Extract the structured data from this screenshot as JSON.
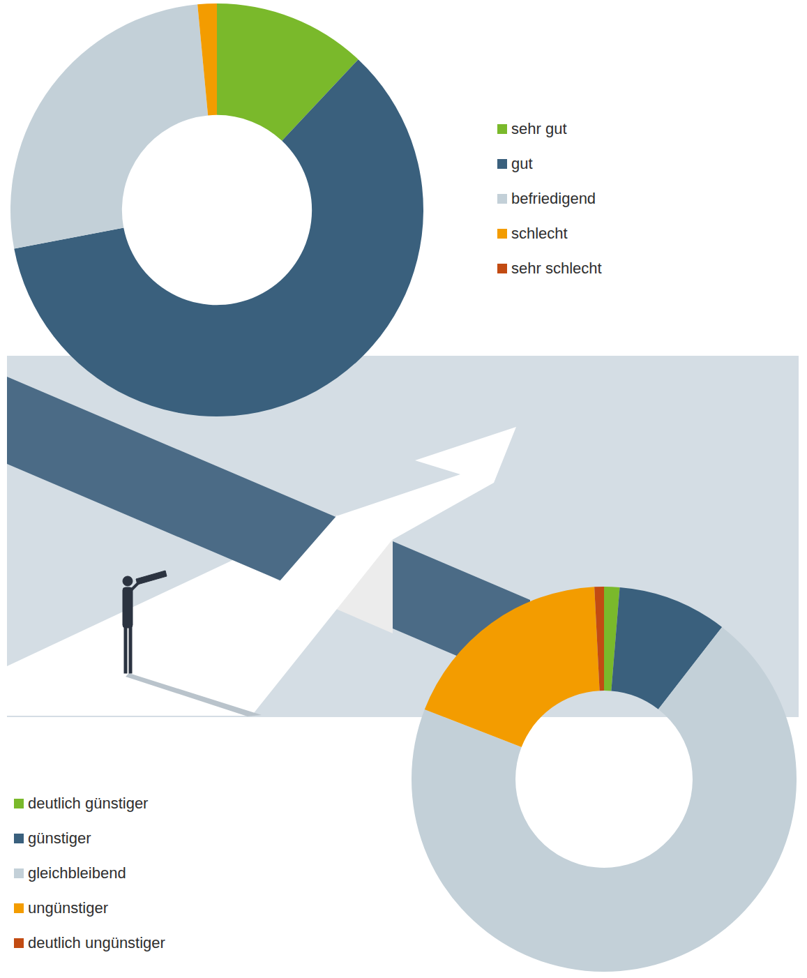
{
  "chart_data": [
    {
      "type": "pie",
      "categories": [
        "sehr gut",
        "gut",
        "befriedigend",
        "schlecht",
        "sehr schlecht"
      ],
      "values": [
        12,
        60,
        26.5,
        1.5,
        0
      ],
      "colors": [
        "#7ab92b",
        "#3a607d",
        "#c3d0d8",
        "#f39c00",
        "#c24b12"
      ],
      "legend": "right"
    },
    {
      "type": "pie",
      "categories": [
        "deutlich günstiger",
        "günstiger",
        "gleichbleibend",
        "ungünstiger",
        "deutlich ungünstiger"
      ],
      "values": [
        1.3,
        9.2,
        70.4,
        18.3,
        0.8
      ],
      "colors": [
        "#7ab92b",
        "#3a607d",
        "#c3d0d8",
        "#f39c00",
        "#c24b12"
      ],
      "legend": "left"
    }
  ]
}
